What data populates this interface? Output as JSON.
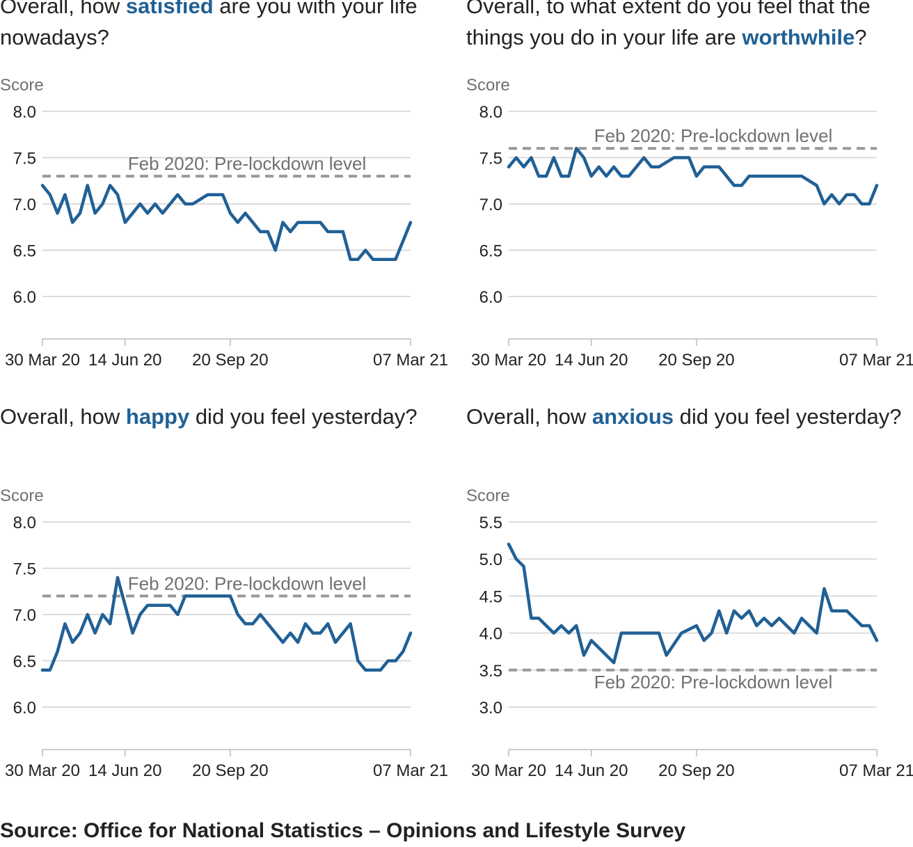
{
  "chart_data": [
    {
      "type": "line",
      "title_parts": [
        "Overall, how ",
        "satisfied",
        " are you with your life nowadays?"
      ],
      "ylabel": "Score",
      "ylim": [
        6.0,
        8.0
      ],
      "yticks": [
        8.0,
        7.5,
        7.0,
        6.5,
        6.0
      ],
      "ytick_labels": [
        "8.0",
        "7.5",
        "7.0",
        "6.5",
        "6.0"
      ],
      "xticks": [
        "30 Mar 20",
        "14 Jun 20",
        "20 Sep 20",
        "07 Mar 21"
      ],
      "xtick_pos": [
        0,
        11,
        25,
        49
      ],
      "x_count": 49,
      "grid": true,
      "series": [
        {
          "values": [
            7.2,
            7.1,
            6.9,
            7.1,
            6.8,
            6.9,
            7.2,
            6.9,
            7.0,
            7.2,
            7.1,
            6.8,
            6.9,
            7.0,
            6.9,
            7.0,
            6.9,
            7.0,
            7.1,
            7.0,
            7.0,
            7.05,
            7.1,
            7.1,
            7.1,
            6.9,
            6.8,
            6.9,
            6.8,
            6.7,
            6.7,
            6.5,
            6.8,
            6.7,
            6.8,
            6.8,
            6.8,
            6.8,
            6.7,
            6.7,
            6.7,
            6.4,
            6.4,
            6.5,
            6.4,
            6.4,
            6.4,
            6.4,
            6.6,
            6.8
          ]
        }
      ],
      "reference": {
        "label": "Feb 2020: Pre-lockdown level",
        "value": 7.3,
        "label_position": "above"
      },
      "line_color": "#206095",
      "reference_color": "#999999"
    },
    {
      "type": "line",
      "title_parts": [
        "Overall, to what extent do you feel that the things you do in your life are ",
        "worthwhile",
        "?"
      ],
      "ylabel": "Score",
      "ylim": [
        6.0,
        8.0
      ],
      "yticks": [
        8.0,
        7.5,
        7.0,
        6.5,
        6.0
      ],
      "ytick_labels": [
        "8.0",
        "7.5",
        "7.0",
        "6.5",
        "6.0"
      ],
      "xticks": [
        "30 Mar 20",
        "14 Jun 20",
        "20 Sep 20",
        "07 Mar 21"
      ],
      "xtick_pos": [
        0,
        11,
        25,
        49
      ],
      "x_count": 49,
      "grid": true,
      "series": [
        {
          "values": [
            7.4,
            7.5,
            7.4,
            7.5,
            7.3,
            7.3,
            7.5,
            7.3,
            7.3,
            7.6,
            7.5,
            7.3,
            7.4,
            7.3,
            7.4,
            7.3,
            7.3,
            7.4,
            7.5,
            7.4,
            7.4,
            7.45,
            7.5,
            7.5,
            7.5,
            7.3,
            7.4,
            7.4,
            7.4,
            7.3,
            7.2,
            7.2,
            7.3,
            7.3,
            7.3,
            7.3,
            7.3,
            7.3,
            7.3,
            7.3,
            7.25,
            7.2,
            7.0,
            7.1,
            7.0,
            7.1,
            7.1,
            7.0,
            7.0,
            7.2
          ]
        }
      ],
      "reference": {
        "label": "Feb 2020: Pre-lockdown level",
        "value": 7.6,
        "label_position": "above"
      },
      "line_color": "#206095",
      "reference_color": "#999999"
    },
    {
      "type": "line",
      "title_parts": [
        "Overall, how ",
        "happy",
        " did you feel yesterday?"
      ],
      "ylabel": "Score",
      "ylim": [
        6.0,
        8.0
      ],
      "yticks": [
        8.0,
        7.5,
        7.0,
        6.5,
        6.0
      ],
      "ytick_labels": [
        "8.0",
        "7.5",
        "7.0",
        "6.5",
        "6.0"
      ],
      "xticks": [
        "30 Mar 20",
        "14 Jun 20",
        "20 Sep 20",
        "07 Mar 21"
      ],
      "xtick_pos": [
        0,
        11,
        25,
        49
      ],
      "x_count": 49,
      "grid": true,
      "series": [
        {
          "values": [
            6.4,
            6.4,
            6.6,
            6.9,
            6.7,
            6.8,
            7.0,
            6.8,
            7.0,
            6.9,
            7.4,
            7.1,
            6.8,
            7.0,
            7.1,
            7.1,
            7.1,
            7.1,
            7.0,
            7.2,
            7.2,
            7.2,
            7.2,
            7.2,
            7.2,
            7.2,
            7.0,
            6.9,
            6.9,
            7.0,
            6.9,
            6.8,
            6.7,
            6.8,
            6.7,
            6.9,
            6.8,
            6.8,
            6.9,
            6.7,
            6.8,
            6.9,
            6.5,
            6.4,
            6.4,
            6.4,
            6.5,
            6.5,
            6.6,
            6.8
          ]
        }
      ],
      "reference": {
        "label": "Feb 2020: Pre-lockdown level",
        "value": 7.2,
        "label_position": "above"
      },
      "line_color": "#206095",
      "reference_color": "#999999"
    },
    {
      "type": "line",
      "title_parts": [
        "Overall, how ",
        "anxious",
        " did you feel yesterday?"
      ],
      "ylabel": "Score",
      "ylim": [
        3.0,
        5.5
      ],
      "yticks": [
        5.5,
        5.0,
        4.5,
        4.0,
        3.5,
        3.0
      ],
      "ytick_labels": [
        "5.5",
        "5.0",
        "4.5",
        "4.0",
        "3.5",
        "3.0"
      ],
      "xticks": [
        "30 Mar 20",
        "14 Jun 20",
        "20 Sep 20",
        "07 Mar 21"
      ],
      "xtick_pos": [
        0,
        11,
        25,
        49
      ],
      "x_count": 49,
      "grid": true,
      "series": [
        {
          "values": [
            5.2,
            5.0,
            4.9,
            4.2,
            4.2,
            4.1,
            4.0,
            4.1,
            4.0,
            4.1,
            3.7,
            3.9,
            3.8,
            3.7,
            3.6,
            4.0,
            4.0,
            4.0,
            4.0,
            4.0,
            4.0,
            3.7,
            3.85,
            4.0,
            4.05,
            4.1,
            3.9,
            4.0,
            4.3,
            4.0,
            4.3,
            4.2,
            4.3,
            4.1,
            4.2,
            4.1,
            4.2,
            4.1,
            4.0,
            4.2,
            4.1,
            4.0,
            4.6,
            4.3,
            4.3,
            4.3,
            4.2,
            4.1,
            4.1,
            3.9
          ]
        }
      ],
      "reference": {
        "label": "Feb 2020: Pre-lockdown level",
        "value": 3.5,
        "label_position": "below"
      },
      "line_color": "#206095",
      "reference_color": "#999999"
    }
  ],
  "source": "Source: Office for National Statistics – Opinions and Lifestyle Survey"
}
